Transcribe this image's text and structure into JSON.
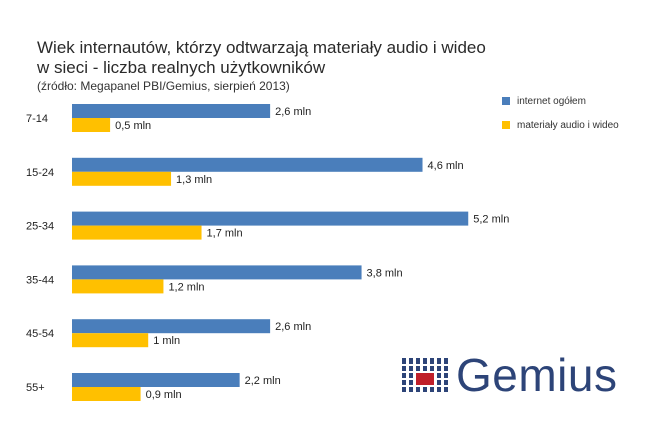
{
  "title_line1": "Wiek internautów, którzy odtwarzają materiały audio i wideo",
  "title_line2": "w sieci - liczba realnych użytkowników",
  "subtitle": "(źródło: Megapanel PBI/Gemius, sierpień 2013)",
  "logo_text": "Gemius",
  "colors": {
    "internet": "#4a7ebb",
    "audio_video": "#ffc000",
    "logo": "#2d4478",
    "logo_accent": "#c0202a"
  },
  "legend": [
    {
      "label": "internet ogółem",
      "color": "#4a7ebb"
    },
    {
      "label": "materiały audio i wideo",
      "color": "#ffc000"
    }
  ],
  "chart_data": {
    "type": "bar",
    "orientation": "horizontal",
    "categories": [
      "7-14",
      "15-24",
      "25-34",
      "35-44",
      "45-54",
      "55+"
    ],
    "series": [
      {
        "name": "internet ogółem",
        "values": [
          2.6,
          4.6,
          5.2,
          3.8,
          2.6,
          2.2
        ],
        "labels": [
          "2,6 mln",
          "4,6 mln",
          "5,2 mln",
          "3,8 mln",
          "2,6 mln",
          "2,2 mln"
        ]
      },
      {
        "name": "materiały audio i wideo",
        "values": [
          0.5,
          1.3,
          1.7,
          1.2,
          1.0,
          0.9
        ],
        "labels": [
          "0,5 mln",
          "1,3 mln",
          "1,7 mln",
          "1,2 mln",
          "1 mln",
          "0,9 mln"
        ]
      }
    ],
    "xlim": [
      0,
      6
    ],
    "grid": false,
    "legend_position": "top-right"
  }
}
